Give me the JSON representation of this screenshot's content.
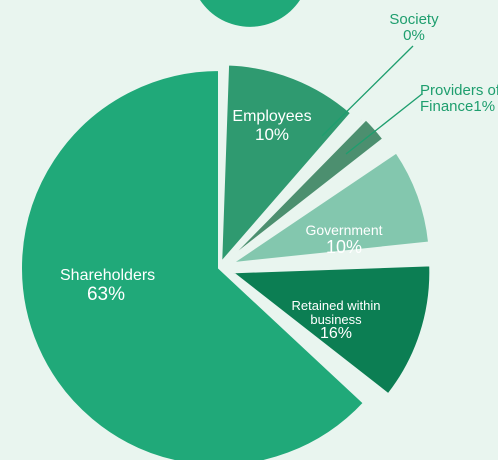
{
  "chart_data": {
    "type": "pie",
    "title": "",
    "slices": [
      {
        "label": "Shareholders",
        "value_label": "63%",
        "value": 63,
        "color": "#20a979"
      },
      {
        "label": "Employees",
        "value_label": "10%",
        "value": 10,
        "color": "#2f9a70"
      },
      {
        "label": "Society",
        "value_label": "0%",
        "value": 0,
        "color": "#237a57"
      },
      {
        "label": "Providers of Finance",
        "value_label": "Finance1%",
        "value": 1,
        "color": "#4c8f6f"
      },
      {
        "label": "Government",
        "value_label": "10%",
        "value": 10,
        "color": "#83c7ae"
      },
      {
        "label": "Retained within business",
        "value_label": "16%",
        "value": 16,
        "color": "#0c7e53"
      }
    ]
  },
  "labels": {
    "shareholders": {
      "name": "Shareholders",
      "value": "63%"
    },
    "employees": {
      "name": "Employees",
      "value": "10%"
    },
    "society": {
      "name": "Society",
      "value": "0%"
    },
    "providers": {
      "name": "Providers of",
      "value": "Finance1%"
    },
    "government": {
      "name": "Government",
      "value": "10%"
    },
    "retained": {
      "name": "Retained within",
      "name2": "business",
      "value": "16%"
    }
  },
  "colors": {
    "background": "#e9f5ef",
    "leader": "#1e9e6e",
    "label_green": "#1e9e6e"
  }
}
